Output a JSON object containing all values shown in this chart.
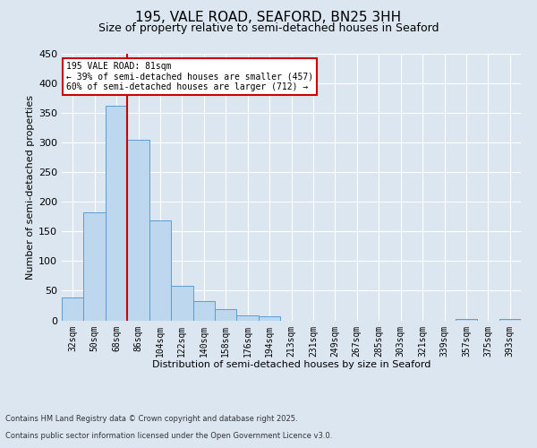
{
  "title1": "195, VALE ROAD, SEAFORD, BN25 3HH",
  "title2": "Size of property relative to semi-detached houses in Seaford",
  "xlabel": "Distribution of semi-detached houses by size in Seaford",
  "ylabel": "Number of semi-detached properties",
  "bin_labels": [
    "32sqm",
    "50sqm",
    "68sqm",
    "86sqm",
    "104sqm",
    "122sqm",
    "140sqm",
    "158sqm",
    "176sqm",
    "194sqm",
    "213sqm",
    "231sqm",
    "249sqm",
    "267sqm",
    "285sqm",
    "303sqm",
    "321sqm",
    "339sqm",
    "357sqm",
    "375sqm",
    "393sqm"
  ],
  "bin_values": [
    38,
    183,
    363,
    305,
    168,
    58,
    33,
    19,
    8,
    7,
    0,
    0,
    0,
    0,
    0,
    0,
    0,
    0,
    3,
    0,
    2
  ],
  "bar_color": "#bdd7ee",
  "bar_edge_color": "#5b9bd5",
  "vline_color": "#cc0000",
  "annotation_text": "195 VALE ROAD: 81sqm\n← 39% of semi-detached houses are smaller (457)\n60% of semi-detached houses are larger (712) →",
  "annotation_box_color": "#ffffff",
  "annotation_box_edge_color": "#cc0000",
  "ylim": [
    0,
    450
  ],
  "yticks": [
    0,
    50,
    100,
    150,
    200,
    250,
    300,
    350,
    400,
    450
  ],
  "bg_color": "#dce6f1",
  "plot_bg_color": "#dce6f1",
  "grid_color": "#ffffff",
  "footnote1": "Contains HM Land Registry data © Crown copyright and database right 2025.",
  "footnote2": "Contains public sector information licensed under the Open Government Licence v3.0.",
  "title1_fontsize": 11,
  "title2_fontsize": 9,
  "xlabel_fontsize": 8,
  "ylabel_fontsize": 8,
  "tick_fontsize": 7,
  "footnote_fontsize": 6,
  "vline_x": 2.5
}
